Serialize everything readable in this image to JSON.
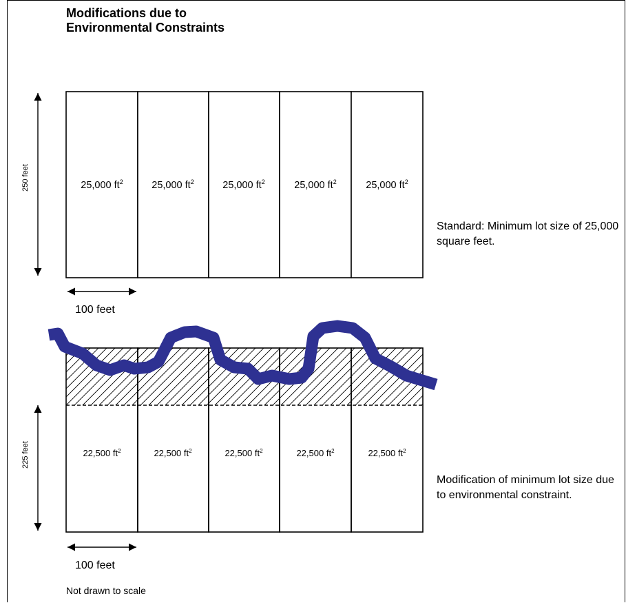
{
  "title_line1": "Modifications due to",
  "title_line2": "Environmental Constraints",
  "standard": {
    "depth_label": "250 feet",
    "width_label": "100 feet",
    "lot_area": "25,000",
    "lots": [
      "25,000",
      "25,000",
      "25,000",
      "25,000",
      "25,000"
    ],
    "note": "Standard: Minimum lot size of 25,000 square feet."
  },
  "modified": {
    "depth_label": "225 feet",
    "width_label": "100 feet",
    "lots": [
      "22,500",
      "22,500",
      "22,500",
      "22,500",
      "22,500"
    ],
    "note": "Modification of minimum lot size due to environmental constraint."
  },
  "area_unit": "ft",
  "area_unit_exp": "2",
  "footer": "Not drawn to scale",
  "colors": {
    "stream": "#2e3192",
    "line": "#000000"
  }
}
